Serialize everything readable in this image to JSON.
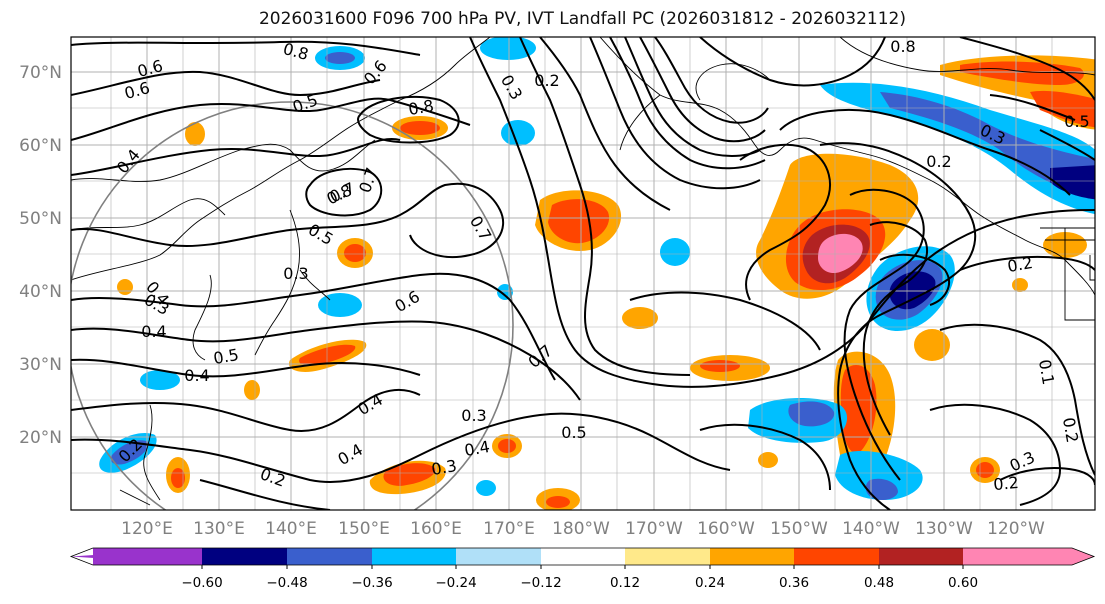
{
  "title": "2026031600 F096 700 hPa PV, IVT Landfall PC (2026031812 - 2026032112)",
  "colors": {
    "land_outline": "#000000",
    "grid": "#b0b0b0",
    "circle": "#808080",
    "axis_label": "#808080"
  },
  "chart_data": {
    "type": "heatmap",
    "lat_ticks": [
      "70°N",
      "60°N",
      "50°N",
      "40°N",
      "30°N",
      "20°N"
    ],
    "lon_ticks": [
      "120°E",
      "130°E",
      "140°E",
      "150°E",
      "160°E",
      "170°E",
      "180°W",
      "170°W",
      "160°W",
      "150°W",
      "140°W",
      "130°W",
      "120°W"
    ],
    "colorbar": {
      "bins": [
        {
          "color": "#9933cc"
        },
        {
          "color": "#000080"
        },
        {
          "color": "#3a5fcd"
        },
        {
          "color": "#00bfff"
        },
        {
          "color": "#b0e0f8"
        },
        {
          "color": "#ffffff"
        },
        {
          "color": "#ffe98a"
        },
        {
          "color": "#ffa500"
        },
        {
          "color": "#ff4500"
        },
        {
          "color": "#b22222"
        },
        {
          "color": "#ff85b3"
        }
      ],
      "tick_labels": [
        "−0.60",
        "−0.48",
        "−0.36",
        "−0.24",
        "−0.12",
        "0.12",
        "0.24",
        "0.36",
        "0.48",
        "0.60"
      ]
    },
    "contour_labels": [
      {
        "text": "0.6"
      },
      {
        "text": "0.6"
      },
      {
        "text": "0.5"
      },
      {
        "text": "0.8"
      },
      {
        "text": "0.8"
      },
      {
        "text": "0.2"
      },
      {
        "text": "0.3"
      },
      {
        "text": "0.8"
      },
      {
        "text": "0.7"
      },
      {
        "text": "0.6"
      },
      {
        "text": "0.3"
      },
      {
        "text": "0.2"
      },
      {
        "text": "0.5"
      },
      {
        "text": "0.4"
      },
      {
        "text": "0.8"
      },
      {
        "text": "0.7"
      },
      {
        "text": "0.5"
      },
      {
        "text": "0.3"
      },
      {
        "text": "0.4"
      },
      {
        "text": "0.7"
      },
      {
        "text": "0.6"
      },
      {
        "text": "0.3"
      },
      {
        "text": "0.4"
      },
      {
        "text": "0.5"
      },
      {
        "text": "0.4"
      },
      {
        "text": "0.7"
      },
      {
        "text": "0.4"
      },
      {
        "text": "0.3"
      },
      {
        "text": "0.4"
      },
      {
        "text": "0.5"
      },
      {
        "text": "0.3"
      },
      {
        "text": "0.4"
      },
      {
        "text": "0.2"
      },
      {
        "text": "0.2"
      },
      {
        "text": "0.2"
      },
      {
        "text": "0.3"
      },
      {
        "text": "0.2"
      },
      {
        "text": "0.2"
      },
      {
        "text": "0.1"
      }
    ]
  }
}
